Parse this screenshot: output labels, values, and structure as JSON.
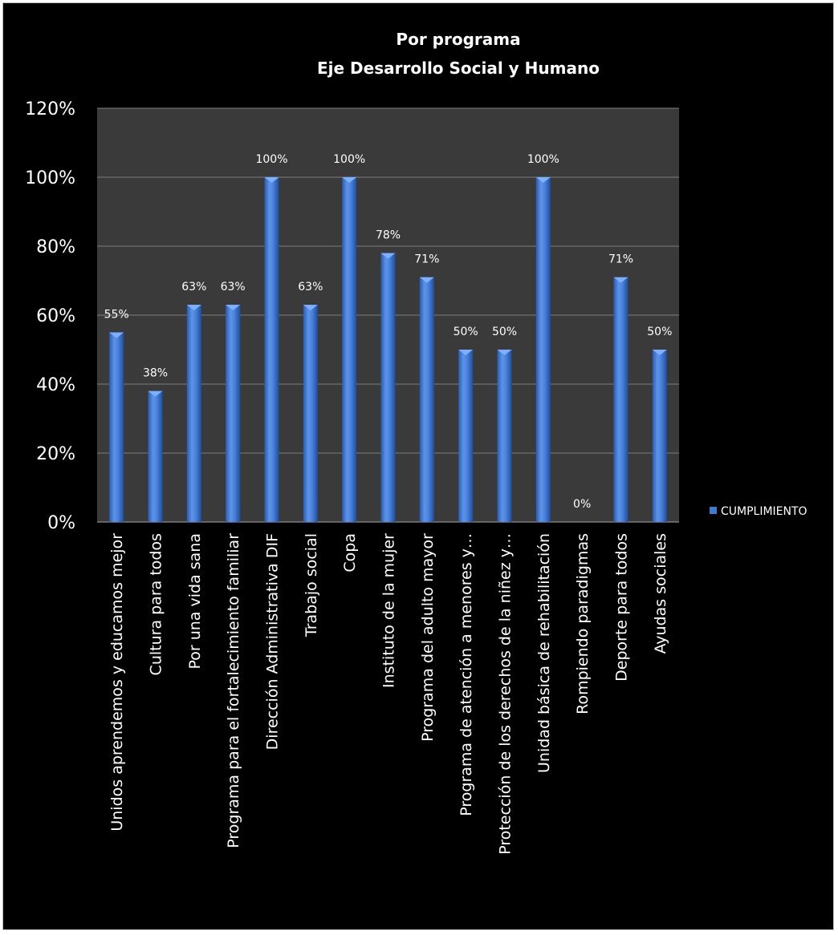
{
  "chart_data": {
    "type": "bar",
    "title": "Por programa",
    "subtitle": "Eje Desarrollo Social y Humano",
    "xlabel": "",
    "ylabel": "",
    "ylim": [
      0,
      120
    ],
    "y_tick_format": "percent",
    "y_ticks": [
      "0%",
      "20%",
      "40%",
      "60%",
      "80%",
      "100%",
      "120%"
    ],
    "grid": true,
    "legend_position": "right",
    "categories": [
      "Unidos aprendemos y educamos mejor",
      "Cultura para todos",
      "Por una vida sana",
      "Programa para el fortalecimiento familiar",
      "Dirección Administrativa DIF",
      "Trabajo social",
      "Copa",
      "Instituto de la mujer",
      "Programa del adulto mayor",
      "Programa de atención a menores y…",
      "Protección de los derechos de la niñez y…",
      "Unidad básica de rehabilitación",
      "Rompiendo paradigmas",
      "Deporte para todos",
      "Ayudas sociales"
    ],
    "series": [
      {
        "name": "CUMPLIMIENTO",
        "values": [
          55,
          38,
          63,
          63,
          100,
          63,
          100,
          78,
          71,
          50,
          50,
          100,
          0,
          71,
          50
        ],
        "data_labels": [
          "55%",
          "38%",
          "63%",
          "63%",
          "100%",
          "63%",
          "100%",
          "78%",
          "71%",
          "50%",
          "50%",
          "100%",
          "0%",
          "71%",
          "50%"
        ]
      }
    ],
    "colors": {
      "background": "#000000",
      "plot_area": "#3a3a3a",
      "bar": "#3f7ad3",
      "bar_light": "#7fb0ff",
      "bar_dark": "#1f4f9c",
      "gridline": "#7f7f7f",
      "text": "#ffffff"
    }
  }
}
